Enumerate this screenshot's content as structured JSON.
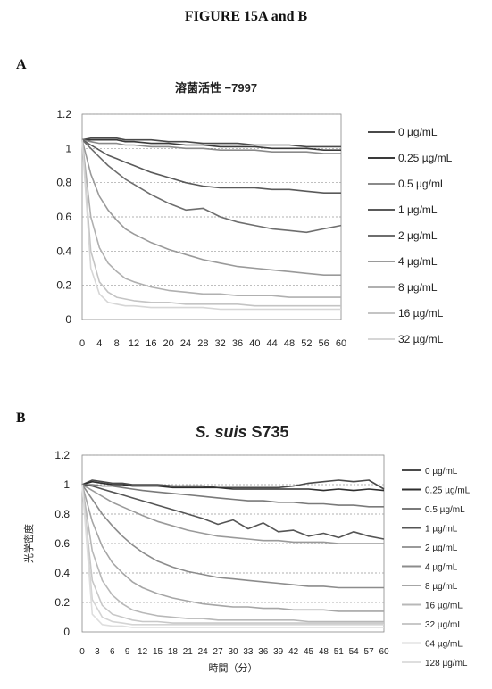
{
  "figure_title": "FIGURE 15A and B",
  "panels": [
    {
      "letter": "A",
      "chart_title": "溶菌活性 −7997",
      "ylabel": "",
      "xlabel": "",
      "x_ticks": [
        "0",
        "4",
        "8",
        "12",
        "16",
        "20",
        "24",
        "28",
        "32",
        "36",
        "40",
        "44",
        "48",
        "52",
        "56",
        "60"
      ],
      "y_ticks": [
        "0",
        "0.2",
        "0.4",
        "0.6",
        "0.8",
        "1",
        "1.2"
      ],
      "legend": [
        "0 µg/mL",
        "0.25 µg/mL",
        "0.5 µg/mL",
        "1 µg/mL",
        "2 µg/mL",
        "4 µg/mL",
        "8 µg/mL",
        "16 µg/mL",
        "32 µg/mL"
      ]
    },
    {
      "letter": "B",
      "chart_title": "S. suis S735",
      "ylabel": "光学密度",
      "xlabel": "時間（分）",
      "x_ticks": [
        "0",
        "3",
        "6",
        "9",
        "12",
        "15",
        "18",
        "21",
        "24",
        "27",
        "30",
        "33",
        "36",
        "39",
        "42",
        "45",
        "48",
        "51",
        "54",
        "57",
        "60"
      ],
      "y_ticks": [
        "0",
        "0.2",
        "0.4",
        "0.6",
        "0.8",
        "1",
        "1.2"
      ],
      "legend": [
        "0 µg/mL",
        "0.25 µg/mL",
        "0.5 µg/mL",
        "1 µg/mL",
        "2 µg/mL",
        "4 µg/mL",
        "8 µg/mL",
        "16 µg/mL",
        "32 µg/mL",
        "64 µg/mL",
        "128 µg/mL"
      ]
    }
  ],
  "chart_data": [
    {
      "type": "line",
      "title": "溶菌活性 −7997",
      "xlabel": "",
      "ylabel": "",
      "xlim": [
        0,
        60
      ],
      "ylim": [
        0,
        1.2
      ],
      "grid": "horizontal dashed",
      "legend_position": "right",
      "x": [
        0,
        2,
        4,
        6,
        8,
        10,
        12,
        16,
        20,
        24,
        28,
        32,
        36,
        40,
        44,
        48,
        52,
        56,
        60
      ],
      "series": [
        {
          "name": "0 µg/mL",
          "color": "#4a4a4a",
          "values": [
            1.05,
            1.06,
            1.06,
            1.06,
            1.06,
            1.05,
            1.05,
            1.05,
            1.04,
            1.04,
            1.03,
            1.03,
            1.03,
            1.02,
            1.02,
            1.02,
            1.01,
            1.01,
            1.01
          ]
        },
        {
          "name": "0.25 µg/mL",
          "color": "#3a3a3a",
          "values": [
            1.05,
            1.05,
            1.05,
            1.05,
            1.05,
            1.04,
            1.04,
            1.03,
            1.03,
            1.02,
            1.02,
            1.01,
            1.01,
            1.01,
            1.0,
            1.0,
            1.0,
            0.99,
            0.99
          ]
        },
        {
          "name": "0.5 µg/mL",
          "color": "#8a8a8a",
          "values": [
            1.05,
            1.04,
            1.03,
            1.03,
            1.03,
            1.02,
            1.02,
            1.01,
            1.01,
            1.0,
            1.0,
            0.99,
            0.99,
            0.99,
            0.98,
            0.98,
            0.98,
            0.97,
            0.97
          ]
        },
        {
          "name": "1 µg/mL",
          "color": "#5a5a5a",
          "values": [
            1.05,
            1.02,
            0.99,
            0.96,
            0.94,
            0.92,
            0.9,
            0.86,
            0.83,
            0.8,
            0.78,
            0.77,
            0.77,
            0.77,
            0.76,
            0.76,
            0.75,
            0.74,
            0.74
          ]
        },
        {
          "name": "2 µg/mL",
          "color": "#6e6e6e",
          "values": [
            1.05,
            1.0,
            0.95,
            0.9,
            0.86,
            0.82,
            0.79,
            0.73,
            0.68,
            0.64,
            0.65,
            0.6,
            0.57,
            0.55,
            0.53,
            0.52,
            0.51,
            0.53,
            0.55
          ]
        },
        {
          "name": "4 µg/mL",
          "color": "#9a9a9a",
          "values": [
            1.05,
            0.85,
            0.72,
            0.64,
            0.58,
            0.53,
            0.5,
            0.45,
            0.41,
            0.38,
            0.35,
            0.33,
            0.31,
            0.3,
            0.29,
            0.28,
            0.27,
            0.26,
            0.26
          ]
        },
        {
          "name": "8 µg/mL",
          "color": "#b0b0b0",
          "values": [
            1.05,
            0.6,
            0.42,
            0.33,
            0.28,
            0.24,
            0.22,
            0.19,
            0.17,
            0.16,
            0.15,
            0.15,
            0.14,
            0.14,
            0.14,
            0.13,
            0.13,
            0.13,
            0.13
          ]
        },
        {
          "name": "16 µg/mL",
          "color": "#c4c4c4",
          "values": [
            1.05,
            0.4,
            0.22,
            0.16,
            0.13,
            0.12,
            0.11,
            0.1,
            0.1,
            0.09,
            0.09,
            0.09,
            0.09,
            0.08,
            0.08,
            0.08,
            0.08,
            0.08,
            0.08
          ]
        },
        {
          "name": "32 µg/mL",
          "color": "#d6d6d6",
          "values": [
            1.05,
            0.3,
            0.15,
            0.1,
            0.09,
            0.08,
            0.08,
            0.07,
            0.07,
            0.07,
            0.07,
            0.06,
            0.06,
            0.06,
            0.06,
            0.06,
            0.06,
            0.06,
            0.06
          ]
        }
      ]
    },
    {
      "type": "line",
      "title": "S. suis S735",
      "xlabel": "時間（分）",
      "ylabel": "光学密度",
      "xlim": [
        0,
        60
      ],
      "ylim": [
        0,
        1.2
      ],
      "grid": "horizontal dashed",
      "legend_position": "right",
      "x": [
        0,
        2,
        4,
        6,
        8,
        10,
        12,
        15,
        18,
        21,
        24,
        27,
        30,
        33,
        36,
        39,
        42,
        45,
        48,
        51,
        54,
        57,
        60
      ],
      "series": [
        {
          "name": "0 µg/mL",
          "color": "#4a4a4a",
          "values": [
            1.0,
            1.03,
            1.02,
            1.01,
            1.01,
            1.0,
            1.0,
            1.0,
            0.99,
            0.99,
            0.99,
            0.98,
            0.98,
            0.98,
            0.98,
            0.98,
            0.99,
            1.01,
            1.02,
            1.03,
            1.02,
            1.03,
            0.97
          ]
        },
        {
          "name": "0.25 µg/mL",
          "color": "#2e2e2e",
          "values": [
            1.0,
            1.02,
            1.01,
            1.0,
            1.0,
            0.99,
            0.99,
            0.99,
            0.98,
            0.98,
            0.98,
            0.98,
            0.97,
            0.97,
            0.97,
            0.97,
            0.97,
            0.97,
            0.96,
            0.97,
            0.96,
            0.97,
            0.96
          ]
        },
        {
          "name": "0.5 µg/mL",
          "color": "#7a7a7a",
          "values": [
            1.0,
            1.0,
            0.99,
            0.99,
            0.98,
            0.97,
            0.96,
            0.95,
            0.94,
            0.93,
            0.92,
            0.91,
            0.9,
            0.89,
            0.89,
            0.88,
            0.88,
            0.87,
            0.87,
            0.86,
            0.86,
            0.85,
            0.85
          ]
        },
        {
          "name": "1 µg/mL",
          "color": "#555555",
          "values": [
            1.0,
            0.99,
            0.97,
            0.95,
            0.93,
            0.91,
            0.89,
            0.86,
            0.83,
            0.8,
            0.77,
            0.73,
            0.76,
            0.7,
            0.74,
            0.68,
            0.69,
            0.65,
            0.67,
            0.64,
            0.68,
            0.65,
            0.63
          ]
        },
        {
          "name": "2 µg/mL",
          "color": "#9a9a9a",
          "values": [
            1.0,
            0.96,
            0.92,
            0.88,
            0.85,
            0.82,
            0.79,
            0.75,
            0.72,
            0.69,
            0.67,
            0.65,
            0.64,
            0.63,
            0.62,
            0.62,
            0.61,
            0.61,
            0.61,
            0.6,
            0.6,
            0.6,
            0.6
          ]
        },
        {
          "name": "4 µg/mL",
          "color": "#8c8c8c",
          "values": [
            1.0,
            0.9,
            0.8,
            0.72,
            0.65,
            0.59,
            0.54,
            0.48,
            0.44,
            0.41,
            0.39,
            0.37,
            0.36,
            0.35,
            0.34,
            0.33,
            0.32,
            0.31,
            0.31,
            0.3,
            0.3,
            0.3,
            0.3
          ]
        },
        {
          "name": "8 µg/mL",
          "color": "#a6a6a6",
          "values": [
            1.0,
            0.75,
            0.58,
            0.47,
            0.4,
            0.34,
            0.3,
            0.26,
            0.23,
            0.21,
            0.19,
            0.18,
            0.17,
            0.17,
            0.16,
            0.16,
            0.15,
            0.15,
            0.15,
            0.14,
            0.14,
            0.14,
            0.14
          ]
        },
        {
          "name": "16 µg/mL",
          "color": "#b8b8b8",
          "values": [
            1.0,
            0.55,
            0.35,
            0.25,
            0.19,
            0.15,
            0.13,
            0.11,
            0.1,
            0.09,
            0.09,
            0.08,
            0.08,
            0.08,
            0.08,
            0.08,
            0.08,
            0.07,
            0.07,
            0.07,
            0.07,
            0.07,
            0.07
          ]
        },
        {
          "name": "32 µg/mL",
          "color": "#c8c8c8",
          "values": [
            1.0,
            0.35,
            0.18,
            0.12,
            0.1,
            0.08,
            0.07,
            0.07,
            0.06,
            0.06,
            0.06,
            0.06,
            0.06,
            0.06,
            0.06,
            0.06,
            0.06,
            0.06,
            0.06,
            0.06,
            0.06,
            0.06,
            0.06
          ]
        },
        {
          "name": "64 µg/mL",
          "color": "#d4d4d4",
          "values": [
            1.0,
            0.22,
            0.1,
            0.07,
            0.06,
            0.05,
            0.05,
            0.05,
            0.05,
            0.05,
            0.05,
            0.05,
            0.05,
            0.05,
            0.05,
            0.05,
            0.05,
            0.05,
            0.05,
            0.05,
            0.05,
            0.05,
            0.05
          ]
        },
        {
          "name": "128 µg/mL",
          "color": "#dedede",
          "values": [
            1.0,
            0.12,
            0.05,
            0.04,
            0.04,
            0.03,
            0.03,
            0.03,
            0.03,
            0.03,
            0.03,
            0.03,
            0.03,
            0.03,
            0.03,
            0.03,
            0.03,
            0.03,
            0.03,
            0.03,
            0.03,
            0.03,
            0.03
          ]
        }
      ]
    }
  ]
}
